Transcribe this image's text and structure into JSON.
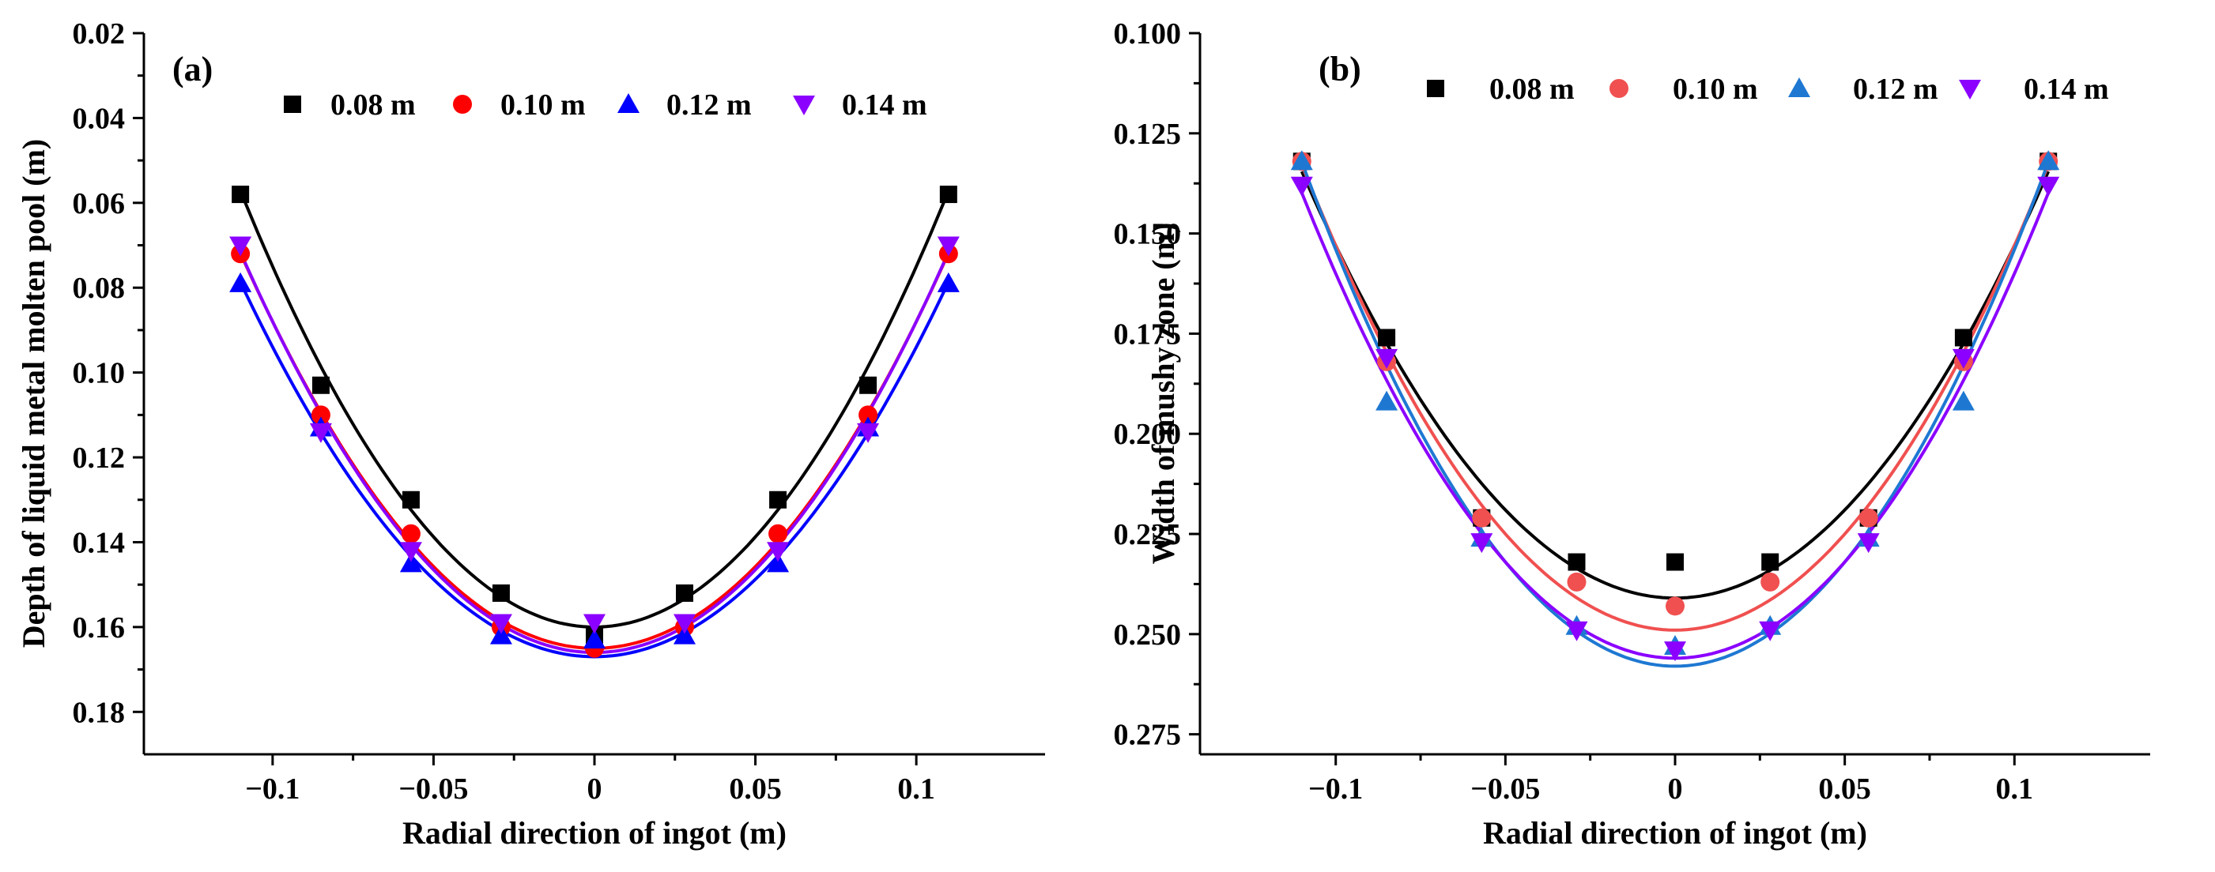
{
  "chart_data": [
    {
      "panel": "(a)",
      "type": "scatter",
      "xlabel": "Radial direction of ingot (m)",
      "ylabel": "Depth of liquid metal molten pool (m)",
      "xlim": [
        -0.14,
        0.14
      ],
      "ylim": [
        0.19,
        0.02
      ],
      "y_inverted": true,
      "xticks": [
        -0.1,
        -0.05,
        0,
        0.05,
        0.1
      ],
      "xtick_labels": [
        "−0.1",
        "−0.05",
        "0",
        "0.05",
        "0.1"
      ],
      "yticks": [
        0.02,
        0.04,
        0.06,
        0.08,
        0.1,
        0.12,
        0.14,
        0.16,
        0.18
      ],
      "ytick_labels": [
        "0.02",
        "0.04",
        "0.06",
        "0.08",
        "0.10",
        "0.12",
        "0.14",
        "0.16",
        "0.18"
      ],
      "legend_position": "top",
      "x": [
        -0.11,
        -0.085,
        -0.057,
        -0.029,
        0,
        0.028,
        0.057,
        0.085,
        0.11
      ],
      "series": [
        {
          "name": "0.08 m",
          "marker": "square",
          "color": "#000000",
          "values": [
            0.058,
            0.103,
            0.13,
            0.152,
            0.162,
            0.152,
            0.13,
            0.103,
            0.058
          ],
          "fit": {
            "a": 8.5,
            "c": 0.16
          }
        },
        {
          "name": "0.10 m",
          "marker": "circle",
          "color": "#ff0000",
          "values": [
            0.072,
            0.11,
            0.138,
            0.16,
            0.165,
            0.16,
            0.138,
            0.11,
            0.072
          ],
          "fit": {
            "a": 7.7,
            "c": 0.165
          }
        },
        {
          "name": "0.12 m",
          "marker": "triangle-up",
          "color": "#0000ff",
          "values": [
            0.079,
            0.113,
            0.145,
            0.162,
            0.163,
            0.162,
            0.145,
            0.113,
            0.079
          ],
          "fit": {
            "a": 7.3,
            "c": 0.167
          }
        },
        {
          "name": "0.14 m",
          "marker": "triangle-down",
          "color": "#8b00ff",
          "values": [
            0.07,
            0.114,
            0.142,
            0.159,
            0.159,
            0.159,
            0.142,
            0.114,
            0.07
          ],
          "fit": {
            "a": 7.8,
            "c": 0.166
          }
        }
      ]
    },
    {
      "panel": "(b)",
      "type": "scatter",
      "xlabel": "Radial direction of ingot (m)",
      "ylabel": "Width of mushy zone (m)",
      "xlim": [
        -0.14,
        0.14
      ],
      "ylim": [
        0.28,
        0.1
      ],
      "y_inverted": true,
      "xticks": [
        -0.1,
        -0.05,
        0,
        0.05,
        0.1
      ],
      "xtick_labels": [
        "−0.1",
        "−0.05",
        "0",
        "0.05",
        "0.1"
      ],
      "yticks": [
        0.1,
        0.125,
        0.15,
        0.175,
        0.2,
        0.225,
        0.25,
        0.275
      ],
      "ytick_labels": [
        "0.100",
        "0.125",
        "0.150",
        "0.175",
        "0.200",
        "0.225",
        "0.250",
        "0.275"
      ],
      "legend_position": "top",
      "x": [
        -0.11,
        -0.085,
        -0.057,
        -0.029,
        0,
        0.028,
        0.057,
        0.085,
        0.11
      ],
      "series": [
        {
          "name": "0.08 m",
          "marker": "square",
          "color": "#000000",
          "values": [
            0.132,
            0.176,
            0.221,
            0.232,
            0.232,
            0.232,
            0.221,
            0.176,
            0.132
          ],
          "fit": {
            "a": 8.8,
            "c": 0.241
          }
        },
        {
          "name": "0.10 m",
          "marker": "circle",
          "color": "#f05050",
          "values": [
            0.132,
            0.182,
            0.221,
            0.237,
            0.243,
            0.237,
            0.221,
            0.182,
            0.132
          ],
          "fit": {
            "a": 9.6,
            "c": 0.249
          }
        },
        {
          "name": "0.12 m",
          "marker": "triangle-up",
          "color": "#1e78d2",
          "values": [
            0.132,
            0.192,
            0.226,
            0.248,
            0.253,
            0.248,
            0.226,
            0.192,
            0.132
          ],
          "fit": {
            "a": 10.4,
            "c": 0.258
          }
        },
        {
          "name": "0.14 m",
          "marker": "triangle-down",
          "color": "#8b00ff",
          "values": [
            0.138,
            0.181,
            0.227,
            0.249,
            0.254,
            0.249,
            0.227,
            0.181,
            0.138
          ],
          "fit": {
            "a": 9.6,
            "c": 0.256
          }
        }
      ]
    }
  ]
}
